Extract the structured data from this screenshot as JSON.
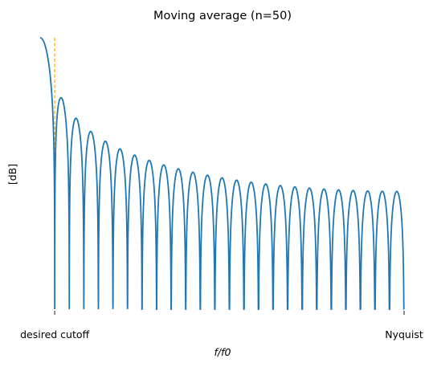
{
  "chart_data": {
    "type": "line",
    "title": "Moving average (n=50)",
    "xlabel": "f/f0",
    "ylabel": "[dB]",
    "x_ticks": [
      {
        "label": "desired cutoff",
        "value": 0.02
      },
      {
        "label": "Nyquist",
        "value": 0.5
      }
    ],
    "x_range": [
      0,
      0.5
    ],
    "window_length": 50,
    "cutoff": 0.02,
    "grid": false,
    "show_y_ticks": false,
    "colors": {
      "response_line": "#1f77b4",
      "cutoff_line": "#ffa500"
    },
    "series": [
      {
        "style": "solid",
        "description_formula": "20*log10(|sin(pi*n*f)/(n*sin(pi*f))|), clipped at -60 dB, f in [0, 0.5]"
      }
    ],
    "reference_lines": [
      {
        "orientation": "vertical",
        "x": 0.02,
        "style": "dashed",
        "color": "#ffa500"
      }
    ],
    "ylim": [
      -60,
      0
    ]
  }
}
